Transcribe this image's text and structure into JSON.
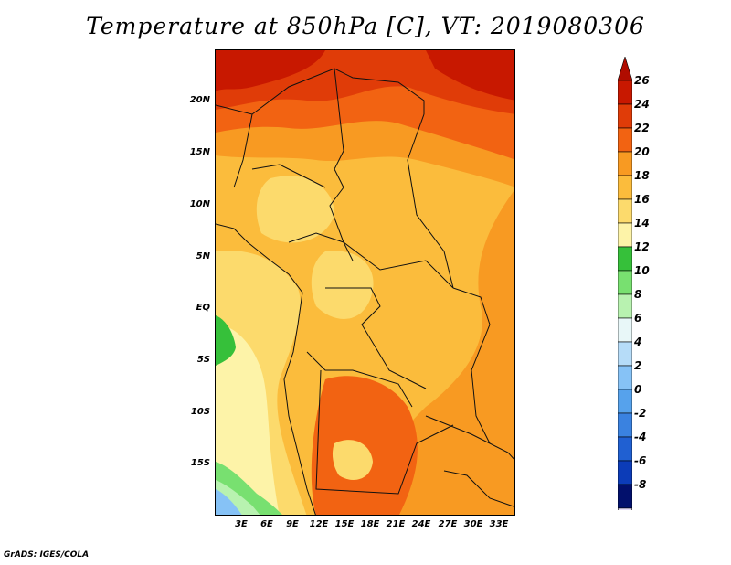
{
  "title": "Temperature at 850hPa [C], VT: 2019080306",
  "credit": "GrADS: IGES/COLA",
  "lat_labels": [
    "20N",
    "15N",
    "10N",
    "5N",
    "EQ",
    "5S",
    "10S",
    "15S"
  ],
  "lon_labels": [
    "3E",
    "6E",
    "9E",
    "12E",
    "15E",
    "18E",
    "21E",
    "24E",
    "27E",
    "30E",
    "33E"
  ],
  "colorbar": {
    "labels": [
      "26",
      "24",
      "22",
      "20",
      "18",
      "16",
      "14",
      "12",
      "10",
      "8",
      "6",
      "4",
      "2",
      "0",
      "-2",
      "-4",
      "-6",
      "-8"
    ],
    "colors": [
      "#c81800",
      "#e03c08",
      "#f26312",
      "#f89a22",
      "#fbbc3c",
      "#fcda6c",
      "#fdf3a8",
      "#36c03a",
      "#78e070",
      "#b8f2b0",
      "#e8f7f8",
      "#b6dcf8",
      "#86c2f6",
      "#56a2ec",
      "#3a82e0",
      "#2060d2",
      "#0c3cb8",
      "#02106c"
    ],
    "top_arrow_color": "#b00c00",
    "bottom_arrow_color": "#e4dcf6"
  }
}
